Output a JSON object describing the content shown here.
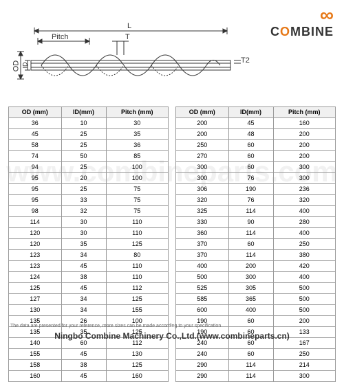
{
  "logo": {
    "brand": "COMBINE",
    "icon": "∞"
  },
  "diagram": {
    "labels": {
      "L": "L",
      "Pitch": "Pitch",
      "T": "T",
      "T2": "T2",
      "OD": "OD",
      "ID": "ID"
    }
  },
  "table_left": {
    "columns": [
      "OD (mm)",
      "ID(mm)",
      "Pitch (mm)"
    ],
    "rows": [
      [
        "36",
        "10",
        "30"
      ],
      [
        "45",
        "25",
        "35"
      ],
      [
        "58",
        "25",
        "36"
      ],
      [
        "74",
        "50",
        "85"
      ],
      [
        "94",
        "25",
        "100"
      ],
      [
        "95",
        "20",
        "100"
      ],
      [
        "95",
        "25",
        "75"
      ],
      [
        "95",
        "33",
        "75"
      ],
      [
        "98",
        "32",
        "75"
      ],
      [
        "114",
        "30",
        "110"
      ],
      [
        "120",
        "30",
        "110"
      ],
      [
        "120",
        "35",
        "125"
      ],
      [
        "123",
        "34",
        "80"
      ],
      [
        "123",
        "45",
        "110"
      ],
      [
        "124",
        "38",
        "110"
      ],
      [
        "125",
        "45",
        "112"
      ],
      [
        "127",
        "34",
        "125"
      ],
      [
        "130",
        "34",
        "155"
      ],
      [
        "135",
        "26",
        "100"
      ],
      [
        "135",
        "35",
        "125"
      ],
      [
        "140",
        "60",
        "112"
      ],
      [
        "155",
        "45",
        "130"
      ],
      [
        "158",
        "38",
        "125"
      ],
      [
        "160",
        "45",
        "160"
      ]
    ]
  },
  "table_right": {
    "columns": [
      "OD (mm)",
      "ID(mm)",
      "Pitch (mm)"
    ],
    "rows": [
      [
        "200",
        "45",
        "160"
      ],
      [
        "200",
        "48",
        "200"
      ],
      [
        "250",
        "60",
        "200"
      ],
      [
        "270",
        "60",
        "200"
      ],
      [
        "300",
        "60",
        "300"
      ],
      [
        "300",
        "76",
        "300"
      ],
      [
        "306",
        "190",
        "236"
      ],
      [
        "320",
        "76",
        "320"
      ],
      [
        "325",
        "114",
        "400"
      ],
      [
        "330",
        "90",
        "280"
      ],
      [
        "360",
        "114",
        "400"
      ],
      [
        "370",
        "60",
        "250"
      ],
      [
        "370",
        "114",
        "380"
      ],
      [
        "400",
        "200",
        "420"
      ],
      [
        "500",
        "300",
        "400"
      ],
      [
        "525",
        "305",
        "500"
      ],
      [
        "585",
        "365",
        "500"
      ],
      [
        "600",
        "400",
        "500"
      ],
      [
        "190",
        "60",
        "200"
      ],
      [
        "190",
        "60",
        "133"
      ],
      [
        "240",
        "60",
        "167"
      ],
      [
        "240",
        "60",
        "250"
      ],
      [
        "290",
        "114",
        "214"
      ],
      [
        "290",
        "114",
        "300"
      ]
    ]
  },
  "note": "The data are presented for your reference, more sizes can be made according to your specification",
  "footer": "Ningbo Combine Machinery Co.,Ltd.(www.combineparts.cn)",
  "watermark": "www.combineparts.com",
  "colors": {
    "accent": "#e67817",
    "line": "#333",
    "grid": "#999"
  }
}
